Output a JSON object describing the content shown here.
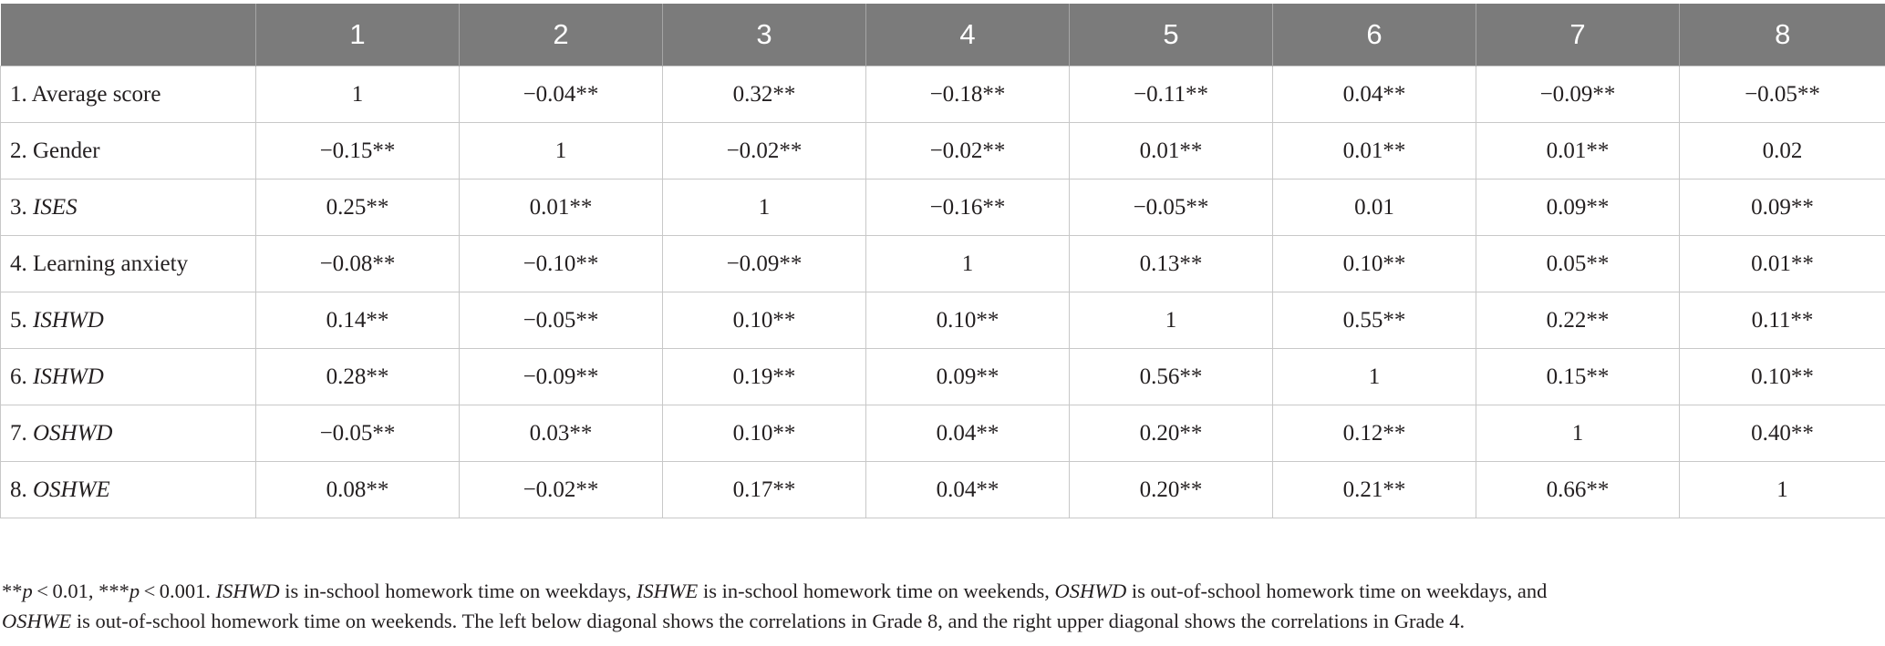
{
  "table": {
    "header": [
      "",
      "1",
      "2",
      "3",
      "4",
      "5",
      "6",
      "7",
      "8"
    ],
    "rows": [
      {
        "num": "1.",
        "label": "Average score",
        "italic": false,
        "cells": [
          "1",
          "−0.04**",
          "0.32**",
          "−0.18**",
          "−0.11**",
          "0.04**",
          "−0.09**",
          "−0.05**"
        ]
      },
      {
        "num": "2.",
        "label": "Gender",
        "italic": false,
        "cells": [
          "−0.15**",
          "1",
          "−0.02**",
          "−0.02**",
          "0.01**",
          "0.01**",
          "0.01**",
          "0.02"
        ]
      },
      {
        "num": "3.",
        "label": "ISES",
        "italic": true,
        "cells": [
          "0.25**",
          "0.01**",
          "1",
          "−0.16**",
          "−0.05**",
          "0.01",
          "0.09**",
          "0.09**"
        ]
      },
      {
        "num": "4.",
        "label": "Learning anxiety",
        "italic": false,
        "cells": [
          "−0.08**",
          "−0.10**",
          "−0.09**",
          "1",
          "0.13**",
          "0.10**",
          "0.05**",
          "0.01**"
        ]
      },
      {
        "num": "5.",
        "label": "ISHWD",
        "italic": true,
        "cells": [
          "0.14**",
          "−0.05**",
          "0.10**",
          "0.10**",
          "1",
          "0.55**",
          "0.22**",
          "0.11**"
        ]
      },
      {
        "num": "6.",
        "label": "ISHWD",
        "italic": true,
        "cells": [
          "0.28**",
          "−0.09**",
          "0.19**",
          "0.09**",
          "0.56**",
          "1",
          "0.15**",
          "0.10**"
        ]
      },
      {
        "num": "7.",
        "label": "OSHWD",
        "italic": true,
        "cells": [
          "−0.05**",
          "0.03**",
          "0.10**",
          "0.04**",
          "0.20**",
          "0.12**",
          "1",
          "0.40**"
        ]
      },
      {
        "num": "8.",
        "label": "OSHWE",
        "italic": true,
        "cells": [
          "0.08**",
          "−0.02**",
          "0.17**",
          "0.04**",
          "0.20**",
          "0.21**",
          "0.66**",
          "1"
        ]
      }
    ]
  },
  "note": {
    "line1": {
      "p1_prefix": "**",
      "p1_var": "p",
      "p1_rest": " < 0.01, ***",
      "p2_var": "p",
      "p2_rest": " < 0.001. ",
      "term1": "ISHWD",
      "def1": " is in-school homework time on weekdays, ",
      "term2": "ISHWE",
      "def2": " is in-school homework time on weekends, ",
      "term3": "OSHWD",
      "def3": " is out-of-school homework time on weekdays, and"
    },
    "line2": {
      "term4": "OSHWE",
      "def4": " is out-of-school homework time on weekends. The left below diagonal shows the correlations in Grade 8, and the right upper diagonal shows the correlations in Grade 4."
    }
  }
}
